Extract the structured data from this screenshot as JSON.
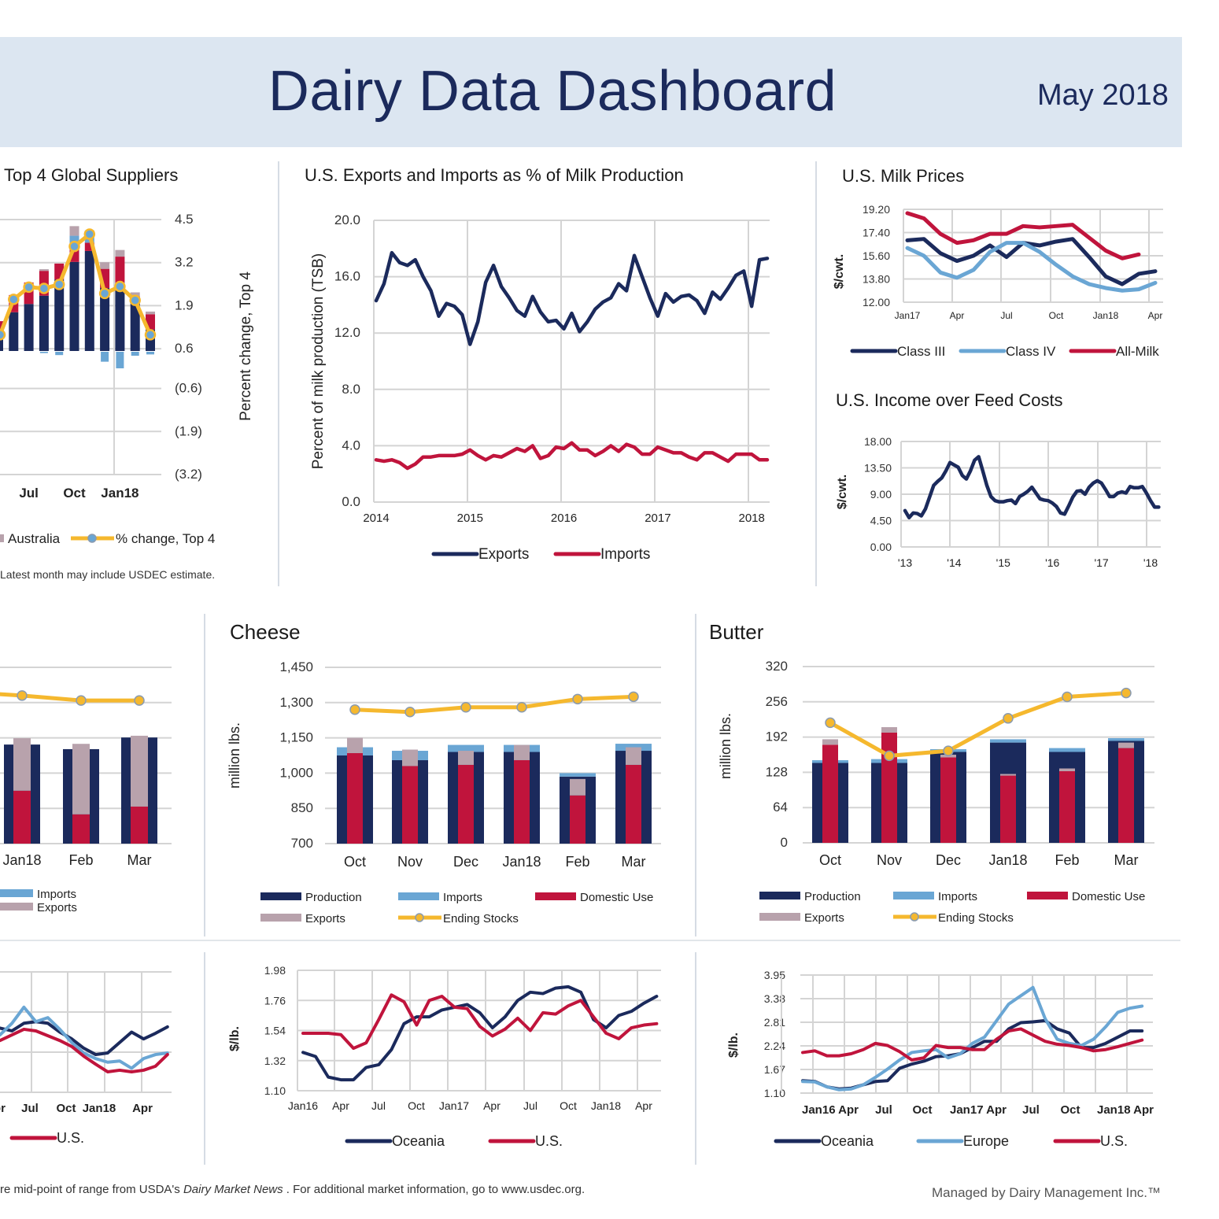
{
  "header": {
    "title": "Dairy Data Dashboard",
    "date": "May 2018"
  },
  "sections": {
    "top4": "Top 4 Global Suppliers",
    "exports_imports": "U.S. Exports and Imports as % of Milk Production",
    "milk_prices": "U.S. Milk Prices",
    "iofc": "U.S. Income over Feed Costs",
    "cheese": "Cheese",
    "butter": "Butter"
  },
  "footnotes": {
    "top4_note": "Latest month may include USDEC estimate.",
    "bottom_pre": "re mid-point of range from USDA's ",
    "bottom_italic": "Dairy Market News",
    "bottom_post": " . For additional market information, go to www.usdec.org.",
    "managed_by": "Managed by Dairy Management Inc.™"
  },
  "colors": {
    "navy": "#1b2a5c",
    "red": "#c0143c",
    "light_blue": "#6aa6d4",
    "mauve": "#b8a2ac",
    "gold": "#f5b82e",
    "header_bg": "#dce6f1"
  },
  "chart_data": [
    {
      "type": "bar",
      "title": "Top 4 Global Suppliers",
      "ylabel_right": "Percent change, Top 4",
      "ylim": [
        -3.2,
        4.5
      ],
      "yticks": [
        4.5,
        3.2,
        1.9,
        0.6,
        -0.6,
        -1.9,
        -3.2
      ],
      "ytick_labels": [
        "4.5",
        "3.2",
        "1.9",
        "0.6",
        "(0.6)",
        "(1.9)",
        "(3.2)"
      ],
      "x_tick_labels": [
        "Jul",
        "Oct",
        "Jan18"
      ],
      "series": [
        {
          "color": "#1b2a5c",
          "values": [
            0.5,
            1.17,
            1.42,
            1.67,
            2.16,
            2.69,
            3.02,
            1.9,
            2.06,
            1.44,
            0.65
          ]
        },
        {
          "color": "#c0143c",
          "values": [
            0.4,
            0.52,
            0.65,
            0.75,
            0.48,
            0.42,
            0.25,
            0.58,
            0.79,
            0.21,
            0.46
          ]
        },
        {
          "color": "#6aa6d4",
          "values": [
            0,
            0,
            0,
            -0.04,
            -0.1,
            0.37,
            0.37,
            -0.3,
            -0.5,
            -0.12,
            -0.08
          ]
        },
        {
          "name": "Australia",
          "color": "#b8a2ac",
          "values": [
            0,
            0,
            0,
            0.05,
            0,
            0.29,
            0,
            0.2,
            0.2,
            0.12,
            0.08
          ]
        },
        {
          "name": "% change, Top 4",
          "color": "#f5b82e",
          "type": "line",
          "values": [
            1.02,
            2.09,
            2.46,
            2.42,
            2.54,
            3.69,
            4.06,
            2.27,
            2.48,
            2.06,
            1.02
          ]
        }
      ]
    },
    {
      "type": "line",
      "title": "U.S. Exports and Imports as % of Milk Production",
      "ylabel": "Percent of milk production (TSB)",
      "ylim": [
        0,
        20
      ],
      "yticks": [
        0,
        4,
        8,
        12,
        16,
        20
      ],
      "ytick_labels": [
        "0.0",
        "4.0",
        "8.0",
        "12.0",
        "16.0",
        "20.0"
      ],
      "x_tick_labels": [
        "2014",
        "2015",
        "2016",
        "2017",
        "2018"
      ],
      "series": [
        {
          "name": "Exports",
          "color": "#1b2a5c",
          "values": [
            14.3,
            15.5,
            17.7,
            17.0,
            16.8,
            17.2,
            16.0,
            15.0,
            13.2,
            14.1,
            13.9,
            13.3,
            11.2,
            12.8,
            15.6,
            16.8,
            15.3,
            14.5,
            13.6,
            13.2,
            14.6,
            13.5,
            12.8,
            12.9,
            12.3,
            13.4,
            12.1,
            12.8,
            13.7,
            14.2,
            14.5,
            15.5,
            15.0,
            17.5,
            16.0,
            14.5,
            13.2,
            14.8,
            14.2,
            14.6,
            14.7,
            14.3,
            13.4,
            14.9,
            14.4,
            15.2,
            16.1,
            16.4,
            13.9,
            17.2,
            17.3
          ]
        },
        {
          "name": "Imports",
          "color": "#c0143c",
          "values": [
            3.0,
            2.9,
            3.0,
            2.8,
            2.4,
            2.7,
            3.2,
            3.2,
            3.3,
            3.3,
            3.3,
            3.4,
            3.7,
            3.3,
            3.0,
            3.3,
            3.2,
            3.5,
            3.8,
            3.6,
            4.0,
            3.1,
            3.3,
            3.9,
            3.8,
            4.2,
            3.7,
            3.7,
            3.3,
            3.6,
            4.0,
            3.6,
            4.1,
            3.9,
            3.4,
            3.4,
            3.9,
            3.7,
            3.5,
            3.5,
            3.2,
            3.0,
            3.5,
            3.5,
            3.2,
            2.9,
            3.4,
            3.4,
            3.4,
            3.0,
            3.0
          ]
        }
      ]
    },
    {
      "type": "line",
      "title": "U.S. Milk Prices",
      "ylabel": "$/cwt.",
      "ylim": [
        12,
        19.2
      ],
      "yticks": [
        12,
        13.8,
        15.6,
        17.4,
        19.2
      ],
      "ytick_labels": [
        "12.00",
        "13.80",
        "15.60",
        "17.40",
        "19.20"
      ],
      "x_tick_labels": [
        "Jan17",
        "Apr",
        "Jul",
        "Oct",
        "Jan18",
        "Apr"
      ],
      "series": [
        {
          "name": "Class III",
          "color": "#1b2a5c",
          "values": [
            16.8,
            16.9,
            15.8,
            15.2,
            15.6,
            16.4,
            15.5,
            16.6,
            16.4,
            16.7,
            16.9,
            15.5,
            14.0,
            13.4,
            14.2,
            14.4
          ]
        },
        {
          "name": "Class IV",
          "color": "#6aa6d4",
          "values": [
            16.2,
            15.6,
            14.3,
            13.9,
            14.5,
            15.9,
            16.6,
            16.6,
            15.9,
            14.9,
            14.0,
            13.4,
            13.1,
            12.9,
            13.0,
            13.5
          ]
        },
        {
          "name": "All-Milk",
          "color": "#c0143c",
          "values": [
            18.9,
            18.5,
            17.3,
            16.6,
            16.8,
            17.3,
            17.3,
            17.9,
            17.8,
            17.9,
            18.0,
            17.0,
            16.0,
            15.4,
            15.7
          ]
        }
      ]
    },
    {
      "type": "line",
      "title": "U.S. Income over Feed Costs",
      "ylabel": "$/cwt.",
      "ylim": [
        0,
        18
      ],
      "yticks": [
        0,
        4.5,
        9,
        13.5,
        18
      ],
      "ytick_labels": [
        "0.00",
        "4.50",
        "9.00",
        "13.50",
        "18.00"
      ],
      "x_tick_labels": [
        "'13",
        "'14",
        "'15",
        "'16",
        "'17",
        "'18"
      ],
      "series": [
        {
          "color": "#1b2a5c",
          "values": [
            6.2,
            5.0,
            5.8,
            5.7,
            5.3,
            6.5,
            8.5,
            10.5,
            11.2,
            11.8,
            13.0,
            14.4,
            14.0,
            13.6,
            12.2,
            11.6,
            13.0,
            14.8,
            15.4,
            13.0,
            10.5,
            8.6,
            7.9,
            7.7,
            7.7,
            7.9,
            8.0,
            7.4,
            8.6,
            9.0,
            9.5,
            10.2,
            9.2,
            8.2,
            8.0,
            7.9,
            7.5,
            6.9,
            5.8,
            5.6,
            7.0,
            8.5,
            9.5,
            9.6,
            9.0,
            10.2,
            10.9,
            11.3,
            10.9,
            9.8,
            8.6,
            8.6,
            9.2,
            9.4,
            9.2,
            10.3,
            10.1,
            10.1,
            10.3,
            9.2,
            7.9,
            6.8,
            6.8
          ]
        }
      ]
    },
    {
      "type": "bar",
      "x_tick_labels": [
        "Jan18",
        "Feb",
        "Mar"
      ],
      "ylim": [
        0,
        5
      ],
      "yticks": [
        0,
        1,
        2,
        3,
        4,
        5
      ],
      "series": [
        {
          "color": "#1b2a5c",
          "values": [
            2.7,
            2.81,
            2.68,
            3.01
          ]
        },
        {
          "name": "Imports",
          "color": "#6aa6d4",
          "values": [
            0,
            0,
            0,
            0
          ]
        },
        {
          "color": "#c0143c",
          "values": [
            1.2,
            1.5,
            0.83,
            1.05
          ]
        },
        {
          "name": "Exports",
          "color": "#b8a2ac",
          "values": [
            1.5,
            1.49,
            2.0,
            2.01
          ]
        },
        {
          "color": "#f5b82e",
          "type": "line",
          "values": [
            4.3,
            4.2,
            4.06,
            4.06
          ]
        }
      ]
    },
    {
      "type": "bar",
      "title": "Cheese",
      "ylabel": "million lbs.",
      "ylim": [
        700,
        1450
      ],
      "yticks": [
        700,
        850,
        1000,
        1150,
        1300,
        1450
      ],
      "ytick_labels": [
        "700",
        "850",
        "1,000",
        "1,150",
        "1,300",
        "1,450"
      ],
      "x_tick_labels": [
        "Oct",
        "Nov",
        "Dec",
        "Jan18",
        "Feb",
        "Mar"
      ],
      "series": [
        {
          "name": "Production",
          "color": "#1b2a5c",
          "values": [
            1075,
            1055,
            1090,
            1090,
            985,
            1095
          ]
        },
        {
          "name": "Imports",
          "color": "#6aa6d4",
          "values": [
            35,
            40,
            30,
            30,
            15,
            30
          ]
        },
        {
          "name": "Domestic Use",
          "color": "#c0143c",
          "values": [
            1085,
            1030,
            1035,
            1055,
            905,
            1035
          ]
        },
        {
          "name": "Exports",
          "color": "#b8a2ac",
          "values": [
            65,
            70,
            60,
            65,
            70,
            75
          ]
        },
        {
          "name": "Ending Stocks",
          "color": "#f5b82e",
          "type": "line",
          "values": [
            1270,
            1260,
            1280,
            1280,
            1315,
            1325
          ]
        }
      ]
    },
    {
      "type": "bar",
      "title": "Butter",
      "ylabel": "million lbs.",
      "ylim": [
        0,
        320
      ],
      "yticks": [
        0,
        64,
        128,
        192,
        256,
        320
      ],
      "ytick_labels": [
        "0",
        "64",
        "128",
        "192",
        "256",
        "320"
      ],
      "x_tick_labels": [
        "Oct",
        "Nov",
        "Dec",
        "Jan18",
        "Feb",
        "Mar"
      ],
      "series": [
        {
          "name": "Production",
          "color": "#1b2a5c",
          "values": [
            145,
            145,
            165,
            182,
            165,
            185
          ]
        },
        {
          "name": "Imports",
          "color": "#6aa6d4",
          "values": [
            5,
            7,
            5,
            6,
            7,
            5
          ]
        },
        {
          "name": "Domestic Use",
          "color": "#c0143c",
          "values": [
            178,
            200,
            155,
            122,
            130,
            172
          ]
        },
        {
          "name": "Exports",
          "color": "#b8a2ac",
          "values": [
            10,
            10,
            5,
            3,
            5,
            10
          ]
        },
        {
          "name": "Ending Stocks",
          "color": "#f5b82e",
          "type": "line",
          "values": [
            218,
            158,
            167,
            226,
            265,
            272
          ]
        }
      ]
    },
    {
      "type": "line",
      "ylim": [
        0,
        3
      ],
      "yticks": [
        0,
        1,
        2,
        3
      ],
      "x_tick_labels": [
        "Apr",
        "Jul",
        "Oct",
        "Jan18",
        "Apr"
      ],
      "series": [
        {
          "color": "#1b2a5c",
          "values": [
            1.6,
            1.53,
            1.72,
            1.76,
            1.72,
            1.5,
            1.33,
            1.1,
            0.94,
            0.98,
            1.24,
            1.5,
            1.33,
            1.47,
            1.63
          ]
        },
        {
          "color": "#6aa6d4",
          "values": [
            1.43,
            1.72,
            2.12,
            1.76,
            1.86,
            1.57,
            1.24,
            0.98,
            0.84,
            0.75,
            0.78,
            0.6,
            0.84,
            0.94,
            0.98
          ]
        },
        {
          "name": "U.S.",
          "color": "#c0143c",
          "values": [
            1.29,
            1.43,
            1.57,
            1.53,
            1.41,
            1.29,
            1.14,
            0.9,
            0.7,
            0.51,
            0.55,
            0.51,
            0.55,
            0.65,
            0.94
          ]
        }
      ]
    },
    {
      "type": "line",
      "ylabel": "$/lb.",
      "ylim": [
        1.1,
        1.98
      ],
      "yticks": [
        1.1,
        1.32,
        1.54,
        1.76,
        1.98
      ],
      "ytick_labels": [
        "1.10",
        "1.32",
        "1.54",
        "1.76",
        "1.98"
      ],
      "x_tick_labels": [
        "Jan16",
        "Apr",
        "Jul",
        "Oct",
        "Jan17",
        "Apr",
        "Jul",
        "Oct",
        "Jan18",
        "Apr"
      ],
      "series": [
        {
          "name": "Oceania",
          "color": "#1b2a5c",
          "values": [
            1.38,
            1.35,
            1.2,
            1.18,
            1.18,
            1.27,
            1.29,
            1.4,
            1.59,
            1.64,
            1.64,
            1.69,
            1.71,
            1.73,
            1.67,
            1.56,
            1.64,
            1.76,
            1.82,
            1.81,
            1.85,
            1.86,
            1.82,
            1.62,
            1.56,
            1.65,
            1.68,
            1.74,
            1.79
          ]
        },
        {
          "name": "U.S.",
          "color": "#c0143c",
          "values": [
            1.52,
            1.52,
            1.52,
            1.51,
            1.41,
            1.45,
            1.62,
            1.8,
            1.75,
            1.58,
            1.76,
            1.79,
            1.71,
            1.7,
            1.57,
            1.5,
            1.55,
            1.63,
            1.54,
            1.67,
            1.66,
            1.72,
            1.76,
            1.64,
            1.52,
            1.48,
            1.56,
            1.58,
            1.59
          ]
        }
      ]
    },
    {
      "type": "line",
      "ylabel": "$/lb.",
      "ylim": [
        1.1,
        3.95
      ],
      "yticks": [
        1.1,
        1.67,
        2.24,
        2.81,
        3.38,
        3.95
      ],
      "ytick_labels": [
        "1.10",
        "1.67",
        "2.24",
        "2.81",
        "3.38",
        "3.95"
      ],
      "x_tick_labels": [
        "Jan16 Apr",
        "Jul",
        "Oct",
        "Jan17 Apr",
        "Jul",
        "Oct",
        "Jan18 Apr"
      ],
      "series": [
        {
          "name": "Oceania",
          "color": "#1b2a5c",
          "values": [
            1.4,
            1.38,
            1.25,
            1.2,
            1.22,
            1.3,
            1.38,
            1.4,
            1.7,
            1.8,
            1.87,
            1.98,
            2.0,
            2.05,
            2.2,
            2.35,
            2.35,
            2.65,
            2.8,
            2.82,
            2.85,
            2.65,
            2.55,
            2.2,
            2.2,
            2.3,
            2.45,
            2.6,
            2.6
          ]
        },
        {
          "name": "Europe",
          "color": "#6aa6d4",
          "values": [
            1.38,
            1.37,
            1.25,
            1.18,
            1.2,
            1.3,
            1.48,
            1.68,
            1.9,
            2.08,
            2.12,
            2.15,
            1.95,
            2.05,
            2.3,
            2.45,
            2.85,
            3.25,
            3.45,
            3.65,
            2.9,
            2.4,
            2.3,
            2.25,
            2.4,
            2.7,
            3.05,
            3.15,
            3.2
          ]
        },
        {
          "name": "U.S.",
          "color": "#c0143c",
          "values": [
            2.08,
            2.12,
            2.0,
            2.0,
            2.05,
            2.15,
            2.3,
            2.25,
            2.1,
            1.9,
            1.95,
            2.25,
            2.2,
            2.2,
            2.15,
            2.15,
            2.4,
            2.6,
            2.65,
            2.5,
            2.35,
            2.28,
            2.25,
            2.2,
            2.12,
            2.15,
            2.22,
            2.3,
            2.38
          ]
        }
      ]
    }
  ]
}
